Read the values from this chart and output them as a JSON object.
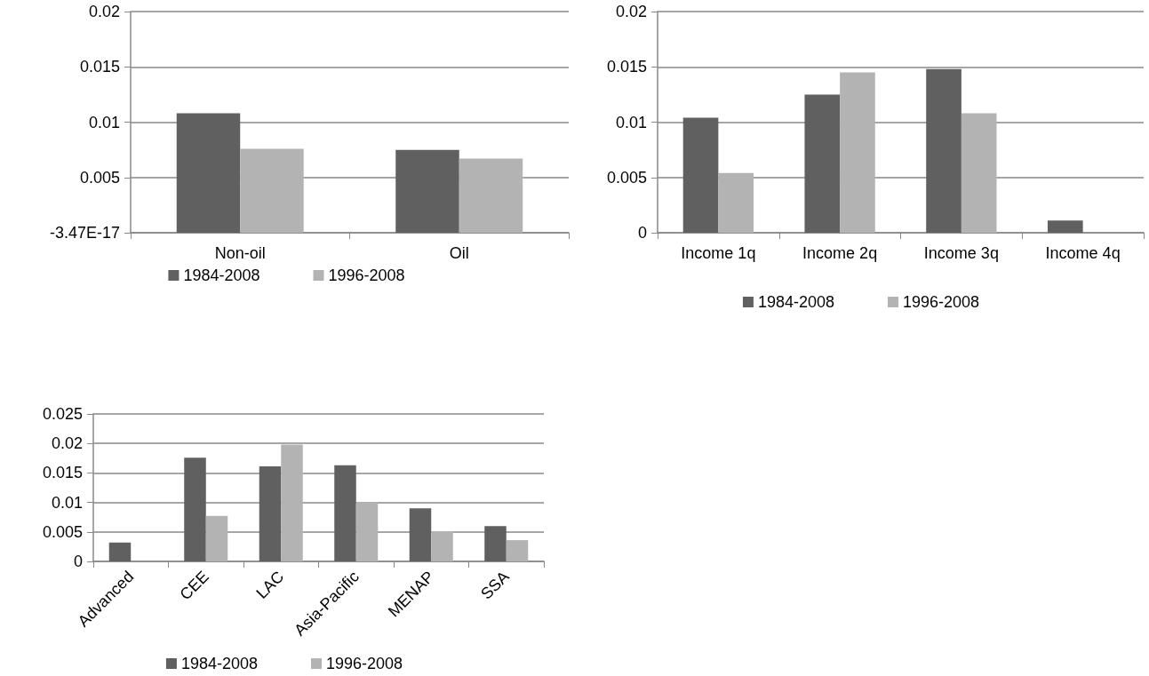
{
  "chart_data": [
    {
      "type": "bar",
      "categories": [
        "Non-oil",
        "Oil"
      ],
      "series": [
        {
          "name": "1984-2008",
          "color": "#606060",
          "values": [
            0.0108,
            0.0075
          ]
        },
        {
          "name": "1996-2008",
          "color": "#b3b3b3",
          "values": [
            0.0076,
            0.0067
          ]
        }
      ],
      "ylim": [
        0,
        0.02
      ],
      "yticks": [
        {
          "value": 0,
          "label": "-3.47E-17"
        },
        0.005,
        0.01,
        0.015,
        0.02
      ],
      "grid": "y",
      "legend": "bottom"
    },
    {
      "type": "bar",
      "categories": [
        "Income 1q",
        "Income 2q",
        "Income 3q",
        "Income 4q"
      ],
      "series": [
        {
          "name": "1984-2008",
          "color": "#606060",
          "values": [
            0.0104,
            0.0125,
            0.0148,
            0.0011
          ]
        },
        {
          "name": "1996-2008",
          "color": "#b3b3b3",
          "values": [
            0.0054,
            0.0145,
            0.0108,
            null
          ]
        }
      ],
      "ylim": [
        0,
        0.02
      ],
      "yticks": [
        0,
        0.005,
        0.01,
        0.015,
        0.02
      ],
      "grid": "y",
      "legend": "bottom"
    },
    {
      "type": "bar",
      "categories": [
        "Advanced",
        "CEE",
        "LAC",
        "Asia-Pacific",
        "MENAP",
        "SSA"
      ],
      "series": [
        {
          "name": "1984-2008",
          "color": "#606060",
          "values": [
            0.0032,
            0.0176,
            0.0161,
            0.0163,
            0.009,
            0.006
          ]
        },
        {
          "name": "1996-2008",
          "color": "#b3b3b3",
          "values": [
            null,
            0.0077,
            0.0198,
            0.01,
            0.0051,
            0.0036
          ]
        }
      ],
      "ylim": [
        0,
        0.025
      ],
      "yticks": [
        0,
        0.005,
        0.01,
        0.015,
        0.02,
        0.025
      ],
      "grid": "y",
      "legend": "bottom"
    }
  ]
}
